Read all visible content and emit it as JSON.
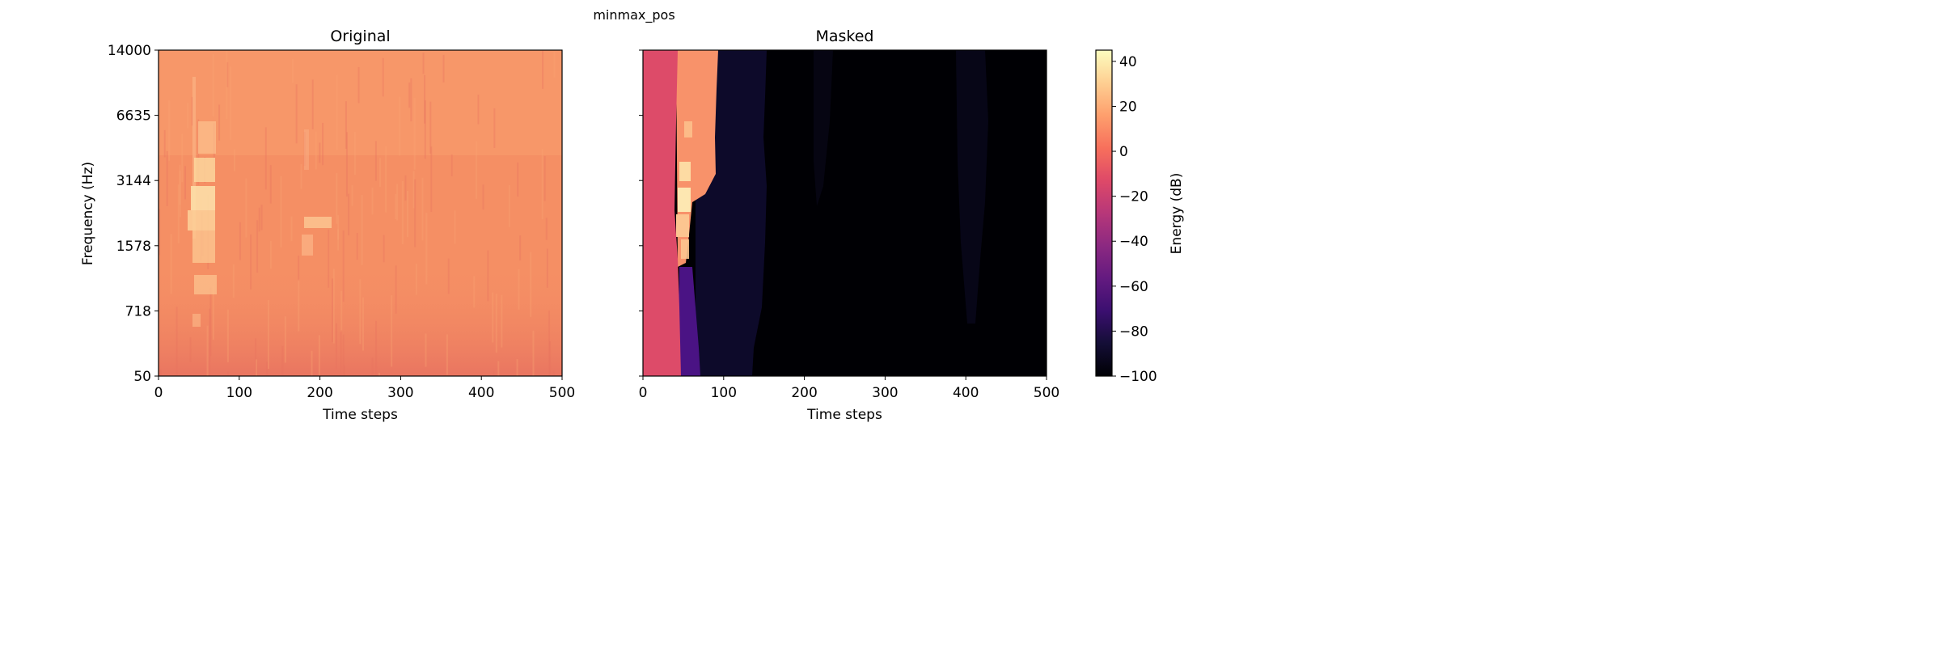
{
  "figure_title": "minmax_pos",
  "chart_data": [
    {
      "type": "heatmap",
      "title": "Original",
      "xlabel": "Time steps",
      "ylabel": "Frequency (Hz)",
      "xlim": [
        0,
        500
      ],
      "x_ticks": [
        0,
        100,
        200,
        300,
        400,
        500
      ],
      "y_tick_labels": [
        "50",
        "718",
        "1578",
        "3144",
        "6635",
        "14000"
      ],
      "y_scale": "mel-like (nonlinear frequency bins)",
      "value_range_dB": [
        -20,
        45
      ],
      "background_level_dB": 15,
      "features": [
        {
          "label": "bright harmonic call",
          "time": [
            40,
            70
          ],
          "freq_hz": [
            1000,
            6635
          ],
          "level_dB": 35
        },
        {
          "label": "faint secondary call",
          "time": [
            180,
            215
          ],
          "freq_hz": [
            1400,
            2400
          ],
          "level_dB": 25
        },
        {
          "label": "low-frequency noise band",
          "time": [
            0,
            500
          ],
          "freq_hz": [
            50,
            400
          ],
          "level_dB": 0
        }
      ]
    },
    {
      "type": "heatmap",
      "title": "Masked",
      "xlabel": "Time steps",
      "ylabel": "",
      "xlim": [
        0,
        500
      ],
      "x_ticks": [
        0,
        100,
        200,
        300,
        400,
        500
      ],
      "shares_y_axis_with": "Original",
      "regions_dB": [
        {
          "label": "pink region",
          "time": [
            0,
            45
          ],
          "level_dB": -10
        },
        {
          "label": "orange region",
          "time": [
            45,
            90
          ],
          "level_dB": 15
        },
        {
          "label": "purple low band",
          "time": [
            45,
            70
          ],
          "level_dB": -60
        },
        {
          "label": "dark navy band",
          "time": [
            70,
            150
          ],
          "level_dB": -90
        },
        {
          "label": "black remainder",
          "time": [
            150,
            500
          ],
          "level_dB": -100
        },
        {
          "label": "faint stripe",
          "time": [
            390,
            425
          ],
          "level_dB": -95
        }
      ]
    }
  ],
  "colorbar": {
    "label": "Energy (dB)",
    "colormap": "magma",
    "range": [
      -100,
      45
    ],
    "ticks": [
      40,
      20,
      0,
      -20,
      -40,
      -60,
      -80,
      -100
    ],
    "tick_labels": [
      "40",
      "20",
      "0",
      "−20",
      "−40",
      "−60",
      "−80",
      "−100"
    ]
  }
}
